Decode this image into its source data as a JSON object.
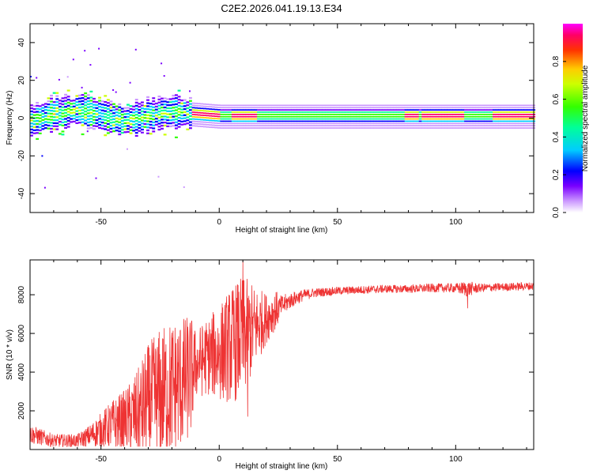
{
  "title": "C2E2.2026.041.19.13.E34",
  "chart_data": [
    {
      "type": "heatmap",
      "title": "",
      "xlabel": "Height of straight line (km)",
      "ylabel": "Frequency (Hz)",
      "xlim": [
        -80,
        133
      ],
      "ylim": [
        -50,
        50
      ],
      "xticks": [
        -50,
        0,
        50,
        100
      ],
      "yticks": [
        -40,
        -20,
        0,
        20,
        40
      ],
      "colorbar": {
        "label": "Normalized spectral amplitude",
        "range": [
          0,
          1
        ],
        "ticks": [
          0,
          0.2,
          0.4,
          0.6,
          0.8
        ],
        "tick_labels": [
          "0.0",
          "0.2",
          "0.4",
          "0.6",
          "0.8"
        ]
      },
      "signal_band": {
        "description": "Carrier line near 0-3 Hz; noisy and broad below -12 km, narrow and strong above",
        "center_hz": [
          {
            "x": -78,
            "f": -1
          },
          {
            "x": -70,
            "f": 2
          },
          {
            "x": -60,
            "f": 4
          },
          {
            "x": -50,
            "f": 1
          },
          {
            "x": -40,
            "f": -2
          },
          {
            "x": -30,
            "f": 1
          },
          {
            "x": -20,
            "f": 3
          },
          {
            "x": -10,
            "f": 2
          },
          {
            "x": 0,
            "f": 1
          },
          {
            "x": 20,
            "f": 1
          },
          {
            "x": 40,
            "f": 1
          },
          {
            "x": 60,
            "f": 1
          },
          {
            "x": 80,
            "f": 1
          },
          {
            "x": 100,
            "f": 1
          },
          {
            "x": 120,
            "f": 1
          },
          {
            "x": 133,
            "f": 1
          }
        ],
        "peak_segments_km": [
          [
            -12,
            0
          ],
          [
            5,
            15
          ],
          [
            78,
            84
          ],
          [
            85,
            103
          ],
          [
            115,
            133
          ]
        ]
      }
    },
    {
      "type": "line",
      "title": "",
      "xlabel": "Height of straight line (km)",
      "ylabel": "SNR (10 * v/v)",
      "xlim": [
        -80,
        133
      ],
      "ylim": [
        0,
        9800
      ],
      "xticks": [
        -50,
        0,
        50,
        100
      ],
      "yticks": [
        2000,
        4000,
        6000,
        8000
      ],
      "series": [
        {
          "name": "SNR",
          "color": "#ee3333",
          "envelope": [
            {
              "x": -80,
              "y": 800,
              "spread": 500
            },
            {
              "x": -70,
              "y": 450,
              "spread": 350
            },
            {
              "x": -60,
              "y": 450,
              "spread": 350
            },
            {
              "x": -55,
              "y": 700,
              "spread": 550
            },
            {
              "x": -50,
              "y": 1000,
              "spread": 900
            },
            {
              "x": -45,
              "y": 1300,
              "spread": 1300
            },
            {
              "x": -40,
              "y": 1500,
              "spread": 1600
            },
            {
              "x": -35,
              "y": 1800,
              "spread": 2200
            },
            {
              "x": -30,
              "y": 2300,
              "spread": 3200
            },
            {
              "x": -25,
              "y": 2800,
              "spread": 3500
            },
            {
              "x": -20,
              "y": 3200,
              "spread": 3600
            },
            {
              "x": -15,
              "y": 3500,
              "spread": 3400
            },
            {
              "x": -12,
              "y": 3800,
              "spread": 3200
            },
            {
              "x": -10,
              "y": 4400,
              "spread": 1800
            },
            {
              "x": -5,
              "y": 4800,
              "spread": 2000
            },
            {
              "x": 0,
              "y": 5000,
              "spread": 2500
            },
            {
              "x": 5,
              "y": 5400,
              "spread": 3000
            },
            {
              "x": 10,
              "y": 5800,
              "spread": 3200
            },
            {
              "x": 15,
              "y": 6300,
              "spread": 2200
            },
            {
              "x": 20,
              "y": 6800,
              "spread": 1300
            },
            {
              "x": 25,
              "y": 7300,
              "spread": 900
            },
            {
              "x": 30,
              "y": 7700,
              "spread": 600
            },
            {
              "x": 35,
              "y": 7950,
              "spread": 450
            },
            {
              "x": 40,
              "y": 8100,
              "spread": 350
            },
            {
              "x": 50,
              "y": 8200,
              "spread": 300
            },
            {
              "x": 60,
              "y": 8250,
              "spread": 300
            },
            {
              "x": 70,
              "y": 8300,
              "spread": 300
            },
            {
              "x": 80,
              "y": 8300,
              "spread": 300
            },
            {
              "x": 90,
              "y": 8350,
              "spread": 330
            },
            {
              "x": 100,
              "y": 8350,
              "spread": 350
            },
            {
              "x": 105,
              "y": 8300,
              "spread": 600
            },
            {
              "x": 110,
              "y": 8350,
              "spread": 330
            },
            {
              "x": 120,
              "y": 8400,
              "spread": 300
            },
            {
              "x": 133,
              "y": 8450,
              "spread": 300
            }
          ],
          "notable_points": [
            {
              "x": 10,
              "y": 9750
            },
            {
              "x": 12,
              "y": 1700
            },
            {
              "x": 105,
              "y": 7300
            }
          ]
        }
      ]
    }
  ]
}
